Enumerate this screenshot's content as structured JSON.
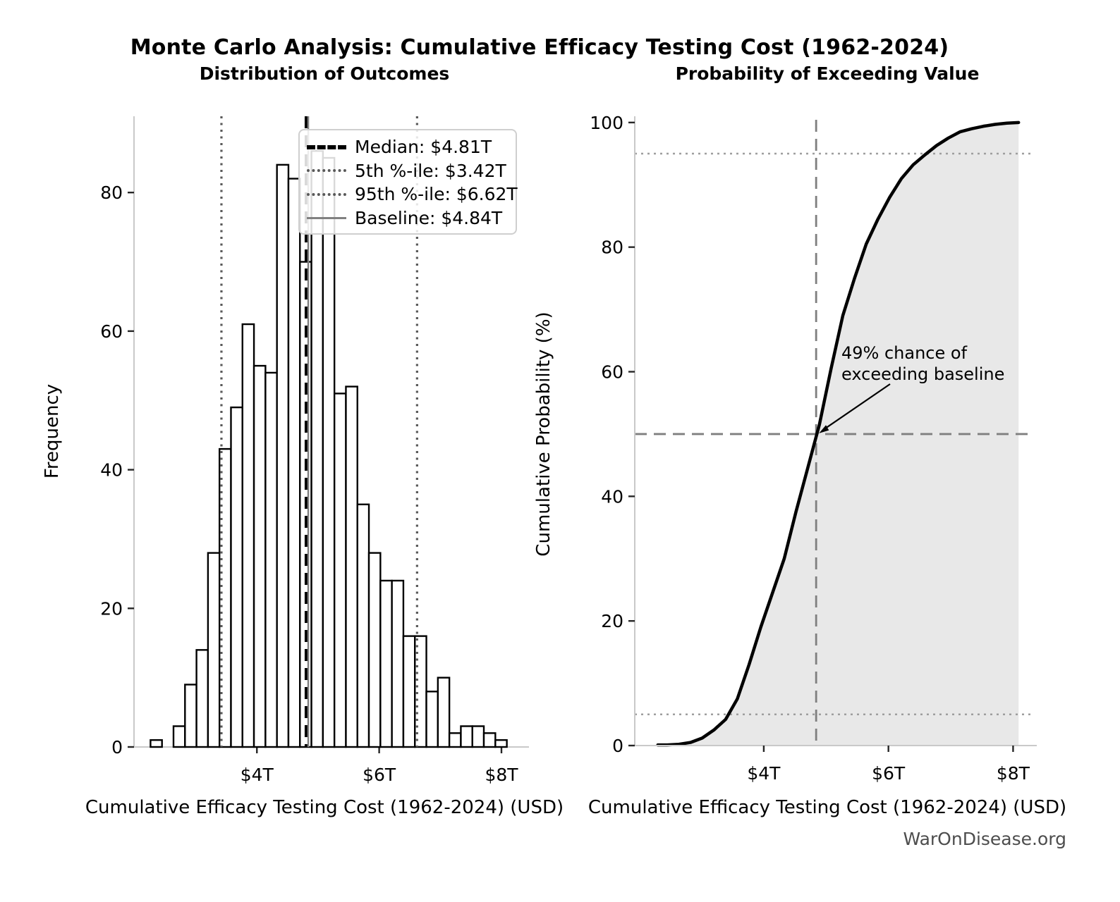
{
  "figure_title": "Monte Carlo Analysis: Cumulative Efficacy Testing Cost (1962-2024)",
  "watermark": "WarOnDisease.org",
  "chart_data": [
    {
      "type": "bar",
      "title": "Distribution of Outcomes",
      "xlabel": "Cumulative Efficacy Testing Cost (1962-2024) (USD)",
      "ylabel": "Frequency",
      "x_unit": "trillions of USD",
      "bin_start": 2.26,
      "bin_width": 0.188,
      "frequencies": [
        1,
        0,
        3,
        9,
        14,
        28,
        43,
        49,
        61,
        55,
        54,
        84,
        82,
        70,
        86,
        85,
        51,
        52,
        35,
        28,
        24,
        24,
        16,
        16,
        8,
        10,
        2,
        3,
        3,
        2,
        1
      ],
      "x_ticks": [
        {
          "value": 4,
          "label": "$4T"
        },
        {
          "value": 6,
          "label": "$6T"
        },
        {
          "value": 8,
          "label": "$8T"
        }
      ],
      "y_ticks": [
        0,
        20,
        40,
        60,
        80
      ],
      "xlim": [
        1.99,
        8.45
      ],
      "ylim": [
        0,
        91
      ],
      "grid": false,
      "legend_position": "upper right",
      "bar_fill": "#ffffff",
      "bar_edge": "#000000",
      "reference_lines": {
        "median": {
          "value": 4.81,
          "label": "Median: $4.81T",
          "style": "dashed",
          "color": "#000000"
        },
        "p5": {
          "value": 3.42,
          "label": "5th %-ile: $3.42T",
          "style": "dotted",
          "color": "#595959"
        },
        "p95": {
          "value": 6.62,
          "label": "95th %-ile: $6.62T",
          "style": "dotted",
          "color": "#595959"
        },
        "baseline": {
          "value": 4.84,
          "label": "Baseline: $4.84T",
          "style": "solid",
          "color": "#808080"
        }
      }
    },
    {
      "type": "line",
      "title": "Probability of Exceeding Value",
      "xlabel": "Cumulative Efficacy Testing Cost (1962-2024) (USD)",
      "ylabel": "Cumulative Probability (%)",
      "x": [
        2.3,
        2.448,
        2.636,
        2.824,
        3.012,
        3.2,
        3.388,
        3.576,
        3.764,
        3.952,
        4.14,
        4.328,
        4.516,
        4.704,
        4.892,
        5.08,
        5.268,
        5.456,
        5.644,
        5.832,
        6.02,
        6.208,
        6.396,
        6.584,
        6.772,
        6.96,
        7.148,
        7.336,
        7.524,
        7.712,
        7.9,
        8.088
      ],
      "y": [
        0.1,
        0.1,
        0.2,
        0.5,
        1.2,
        2.5,
        4.2,
        7.5,
        13.0,
        19.0,
        24.5,
        30.0,
        37.5,
        44.5,
        51.5,
        60.5,
        69.0,
        75.0,
        80.5,
        84.5,
        88.0,
        91.0,
        93.2,
        94.8,
        96.3,
        97.5,
        98.5,
        99.0,
        99.4,
        99.7,
        99.9,
        100.0
      ],
      "x_ticks": [
        {
          "value": 4,
          "label": "$4T"
        },
        {
          "value": 6,
          "label": "$6T"
        },
        {
          "value": 8,
          "label": "$8T"
        }
      ],
      "y_ticks": [
        0,
        20,
        40,
        60,
        80,
        100
      ],
      "xlim": [
        1.93,
        8.38
      ],
      "ylim": [
        0,
        101
      ],
      "grid": false,
      "fill_under": true,
      "fill_color": "#e8e8e8",
      "line_color": "#000000",
      "guides": {
        "baseline_x": 4.84,
        "h_dashed": 50,
        "h_dotted_low": 5,
        "h_dotted_high": 95
      },
      "annotation": {
        "lines": [
          "49% chance of",
          "exceeding baseline"
        ],
        "arrow_target": {
          "x": 4.84,
          "y": 50
        }
      }
    }
  ]
}
